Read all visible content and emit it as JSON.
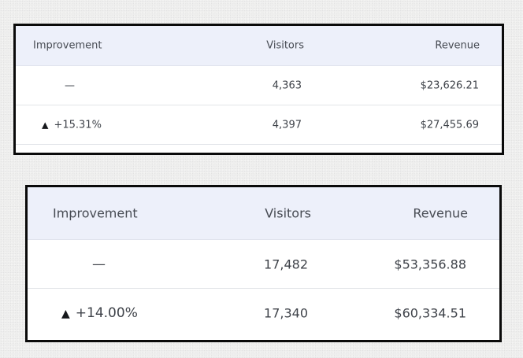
{
  "tables": [
    {
      "headers": {
        "improvement": "Improvement",
        "visitors": "Visitors",
        "revenue": "Revenue"
      },
      "rows": [
        {
          "improvement": "—",
          "visitors": "4,363",
          "revenue": "$23,626.21"
        },
        {
          "arrow": "▲",
          "improvement": "+15.31%",
          "visitors": "4,397",
          "revenue": "$27,455.69"
        }
      ]
    },
    {
      "headers": {
        "improvement": "Improvement",
        "visitors": "Visitors",
        "revenue": "Revenue"
      },
      "rows": [
        {
          "improvement": "—",
          "visitors": "17,482",
          "revenue": "$53,356.88"
        },
        {
          "arrow": "▲",
          "improvement": "+14.00%",
          "visitors": "17,340",
          "revenue": "$60,334.51"
        }
      ]
    }
  ]
}
